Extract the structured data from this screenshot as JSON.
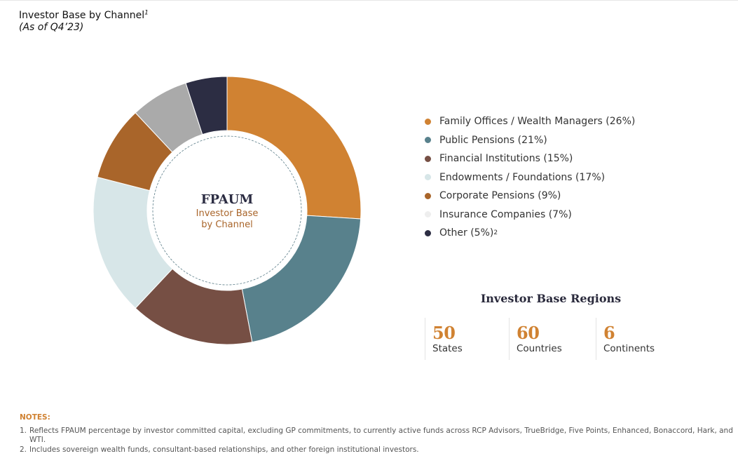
{
  "title": "Investor Base by Channel",
  "title_footnote": "1",
  "subtitle": "(As of Q4’23)",
  "chart_data": {
    "type": "pie",
    "donut": true,
    "center_title": "FPAUM",
    "center_subtitle_line1": "Investor Base",
    "center_subtitle_line2": "by Channel",
    "legend_position": "right",
    "slices": [
      {
        "label": "Family Offices / Wealth Managers (26%)",
        "value": 26,
        "color": "#d08232"
      },
      {
        "label": "Public Pensions (21%)",
        "value": 21,
        "color": "#58818c"
      },
      {
        "label": "Financial Institutions (15%)",
        "value": 15,
        "color": "#764f44"
      },
      {
        "label": "Endowments / Foundations (17%)",
        "value": 17,
        "color": "#d7e6e8"
      },
      {
        "label": "Corporate Pensions (9%)",
        "value": 9,
        "color": "#a9652a"
      },
      {
        "label": "Insurance Companies (7%)",
        "value": 7,
        "color": "#aaaaaa"
      },
      {
        "label": "Other (5%)",
        "label_footnote": "2",
        "value": 5,
        "color": "#2c2d43"
      }
    ]
  },
  "legend": [
    {
      "label": "Family Offices / Wealth Managers (26%)",
      "color": "#d08232"
    },
    {
      "label": "Public Pensions (21%)",
      "color": "#58818c"
    },
    {
      "label": "Financial Institutions (15%)",
      "color": "#764f44"
    },
    {
      "label": "Endowments / Foundations (17%)",
      "color": "#d7e6e8"
    },
    {
      "label": "Corporate Pensions (9%)",
      "color": "#a9652a"
    },
    {
      "label": "Insurance Companies (7%)",
      "color": "#eeeeee"
    },
    {
      "label": "Other (5%)",
      "footnote": "2",
      "color": "#2c2d43"
    }
  ],
  "regions": {
    "title": "Investor Base Regions",
    "items": [
      {
        "value": "50",
        "label": "States"
      },
      {
        "value": "60",
        "label": "Countries"
      },
      {
        "value": "6",
        "label": "Continents"
      }
    ]
  },
  "notes": {
    "title": "NOTES:",
    "items": [
      {
        "num": "1.",
        "text": "Reflects FPAUM percentage by investor committed capital, excluding GP commitments, to currently active funds across RCP Advisors, TrueBridge, Five Points, Enhanced, Bonaccord, Hark, and WTI."
      },
      {
        "num": "2.",
        "text": "Includes sovereign wealth funds, consultant-based relationships, and other foreign institutional investors."
      }
    ]
  }
}
